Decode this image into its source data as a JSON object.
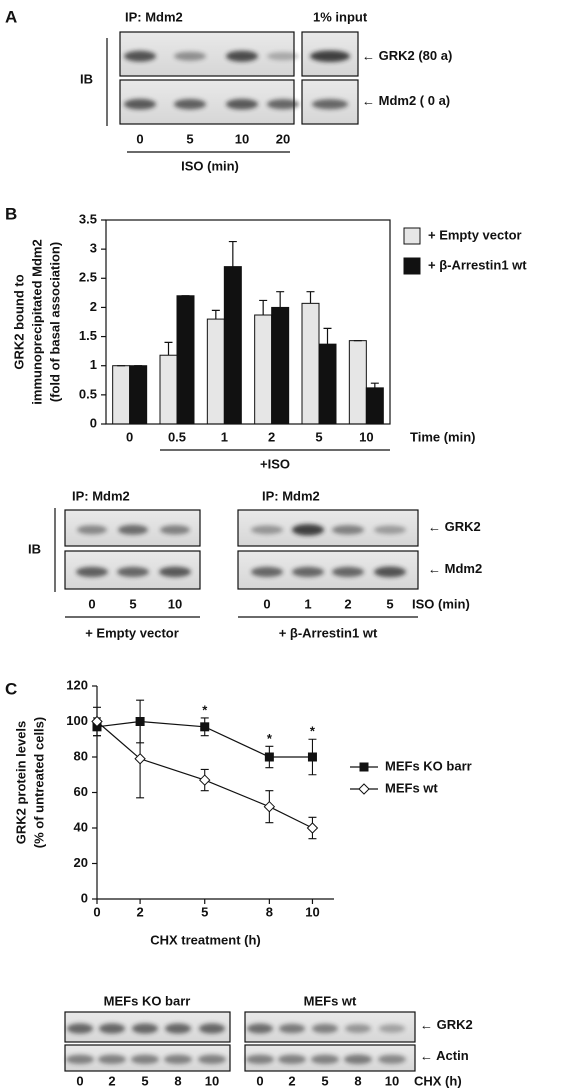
{
  "panel_a": {
    "letter": "A",
    "ip_label": "IP: Mdm2",
    "input_label": "1% input",
    "ib_label": "IB",
    "band_labels": [
      "GRK2 (80    a)",
      "Mdm2 ( 0   a)"
    ],
    "lanes": [
      "0",
      "5",
      "10",
      "20"
    ],
    "lane_axis": "ISO (min)"
  },
  "panel_b": {
    "letter": "B",
    "group_label": "+ISO",
    "blot": {
      "ib_label": "IB",
      "ip_labels": [
        "IP: Mdm2",
        "IP: Mdm2"
      ],
      "lanes_left": [
        "0",
        "5",
        "10"
      ],
      "lanes_right": [
        "0",
        "1",
        "2",
        "5"
      ],
      "lane_axis": "ISO (min)",
      "captions": [
        "+ Empty vector",
        "+ β-Arrestin1 wt"
      ],
      "band_labels": [
        "GRK2",
        "Mdm2"
      ]
    }
  },
  "panel_c": {
    "letter": "C",
    "blot": {
      "titles": [
        "MEFs KO barr",
        "MEFs wt"
      ],
      "lanes_left": [
        "0",
        "2",
        "5",
        "8",
        "10"
      ],
      "lanes_right": [
        "0",
        "2",
        "5",
        "8",
        "10"
      ],
      "lane_axis": "CHX (h)",
      "band_labels": [
        "GRK2",
        "Actin"
      ]
    }
  },
  "chart_data": [
    {
      "type": "bar",
      "y_label": [
        "GRK2 bound to",
        "immunoprecipitated Mdm2",
        "(fold of basal association)"
      ],
      "x_label": "Time (min)",
      "categories": [
        "0",
        "0.5",
        "1",
        "2",
        "5",
        "10"
      ],
      "series": [
        {
          "name": "+ Empty vector",
          "color": "#e6e6e6",
          "values": [
            1,
            1.18,
            1.8,
            1.87,
            2.07,
            1.43
          ],
          "errors": [
            0,
            0.22,
            0.15,
            0.25,
            0.2,
            0
          ]
        },
        {
          "name": "+ β-Arrestin1 wt",
          "color": "#111111",
          "values": [
            1,
            2.2,
            2.7,
            2.0,
            1.37,
            0.62
          ],
          "errors": [
            0,
            0,
            0.43,
            0.27,
            0.27,
            0.08
          ]
        }
      ],
      "ylim": [
        0,
        3.5
      ],
      "yticks": [
        0,
        0.5,
        1,
        1.5,
        2,
        2.5,
        3,
        3.5
      ],
      "legend": "right"
    },
    {
      "type": "line",
      "y_label": [
        "GRK2 protein levels",
        "(% of untreated cells)"
      ],
      "x_label": "CHX treatment (h)",
      "x": [
        0,
        2,
        5,
        8,
        10
      ],
      "series": [
        {
          "name": "MEFs KO barr",
          "color": "#111111",
          "marker": "square",
          "values": [
            97,
            100,
            97,
            80,
            80
          ],
          "errors": [
            5,
            12,
            5,
            6,
            10
          ]
        },
        {
          "name": "MEFs wt",
          "color": "#ffffff",
          "marker": "diamond",
          "values": [
            100,
            79,
            67,
            52,
            40
          ],
          "errors": [
            8,
            22,
            6,
            9,
            6
          ]
        }
      ],
      "annotations": [
        {
          "text": "*",
          "x": 5
        },
        {
          "text": "*",
          "x": 8
        },
        {
          "text": "*",
          "x": 10
        }
      ],
      "xlim": [
        0,
        11
      ],
      "xticks": [
        0,
        2,
        5,
        8,
        10
      ],
      "ylim": [
        0,
        120
      ],
      "yticks": [
        0,
        20,
        40,
        60,
        80,
        100,
        120
      ],
      "legend": "right"
    }
  ]
}
